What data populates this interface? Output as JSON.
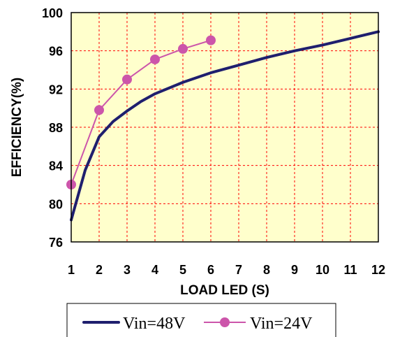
{
  "chart_data": {
    "type": "line",
    "xlabel": "LOAD LED (S)",
    "ylabel": "EFFICIENCY(%)",
    "xlim": [
      1,
      12
    ],
    "ylim": [
      76,
      100
    ],
    "x_ticks": [
      1,
      2,
      3,
      4,
      5,
      6,
      7,
      8,
      9,
      10,
      11,
      12
    ],
    "y_ticks": [
      76,
      80,
      84,
      88,
      92,
      96,
      100
    ],
    "grid": true,
    "legend_position": "bottom-center",
    "plot_background": "#ffffcc",
    "grid_color": "#ff0000",
    "series": [
      {
        "name": "Vin=48V",
        "color": "#1f1f6e",
        "marker": "none",
        "x": [
          1,
          1.5,
          2,
          2.5,
          3,
          3.5,
          4,
          5,
          6,
          7,
          8,
          9,
          10,
          11,
          12
        ],
        "y": [
          78.3,
          83.5,
          87,
          88.6,
          89.7,
          90.7,
          91.5,
          92.7,
          93.7,
          94.5,
          95.3,
          96.0,
          96.6,
          97.3,
          98.0
        ]
      },
      {
        "name": "Vin=24V",
        "color": "#cc55aa",
        "marker": "circle",
        "x": [
          1,
          2,
          3,
          4,
          5,
          6
        ],
        "y": [
          82,
          89.8,
          93,
          95.1,
          96.2,
          97.1
        ]
      }
    ]
  }
}
